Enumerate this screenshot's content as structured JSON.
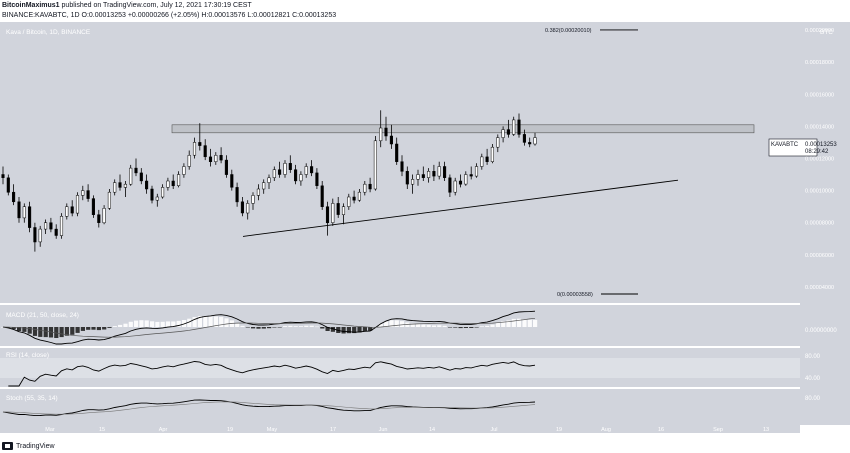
{
  "header": {
    "author": "BitcoinMaximus1",
    "published_text": "published on TradingView.com, July 12, 2021 17:30:19 CEST",
    "symbol": "BINANCE:KAVABTC, 1D",
    "o_label": "O:",
    "o_value": "0.00013253",
    "change": "+0.00000266 (+2.05%)",
    "h_label": "H:",
    "h_value": "0.00013576",
    "l_label": "L:",
    "l_value": "0.00012821",
    "c_label": "C:",
    "c_value": "0.00013253"
  },
  "footer": {
    "brand": "TradingView"
  },
  "chart_data": {
    "type": "candlestick",
    "legend": "Kava / Bitcoin, 1D, BINANCE",
    "currency_label": "BTC",
    "price_axis": {
      "ticks": [
        "0.00020000",
        "0.00018000",
        "0.00016000",
        "0.00014000",
        "0.00012000",
        "0.00010000",
        "0.00008000",
        "0.00006000",
        "0.00004000"
      ],
      "range": [
        3e-05,
        0.000205
      ]
    },
    "price_label": {
      "symbol": "KAVABTC",
      "value": "0.00013253",
      "countdown": "08:29:42"
    },
    "x_axis": {
      "labels": [
        "Mar",
        "15",
        "Apr",
        "19",
        "May",
        "17",
        "Jun",
        "14",
        "Jul",
        "19",
        "Aug",
        "16",
        "Sep",
        "13"
      ]
    },
    "fib_levels": [
      {
        "label": "0.382(0.00020010)",
        "value": 0.0002001
      },
      {
        "label": "0(0.00003558)",
        "value": 3.558e-05
      }
    ],
    "resistance_zone": [
      0.000136,
      0.000141
    ],
    "ascending_support": {
      "from": [
        "Apr 19",
        7.15e-05
      ],
      "to": [
        "Aug 16",
        0.0001065
      ]
    },
    "ohlc_approx": [
      [
        0.00011,
        0.000115,
        0.000104,
        0.000108
      ],
      [
        0.000108,
        0.00011,
        9.7e-05,
        9.9e-05
      ],
      [
        9.9e-05,
        0.000104,
        9.1e-05,
        9.3e-05
      ],
      [
        9.3e-05,
        9.6e-05,
        8e-05,
        8.3e-05
      ],
      [
        8.3e-05,
        9.2e-05,
        8e-05,
        9e-05
      ],
      [
        9e-05,
        9.3e-05,
        7.4e-05,
        7.7e-05
      ],
      [
        7.7e-05,
        8e-05,
        6.2e-05,
        6.8e-05
      ],
      [
        6.8e-05,
        7.8e-05,
        6.5e-05,
        7.6e-05
      ],
      [
        7.6e-05,
        8.2e-05,
        7.3e-05,
        8e-05
      ],
      [
        8e-05,
        8.3e-05,
        7.4e-05,
        7.6e-05
      ],
      [
        7.6e-05,
        7.9e-05,
        7e-05,
        7.2e-05
      ],
      [
        7.2e-05,
        8.6e-05,
        7e-05,
        8.4e-05
      ],
      [
        8.4e-05,
        9.2e-05,
        8.2e-05,
        9e-05
      ],
      [
        9e-05,
        9.4e-05,
        8.4e-05,
        8.6e-05
      ],
      [
        8.6e-05,
        9.9e-05,
        8.4e-05,
        9.7e-05
      ],
      [
        9.7e-05,
        0.000103,
        9.4e-05,
        0.0001
      ],
      [
        0.0001,
        0.000104,
        9.3e-05,
        9.5e-05
      ],
      [
        9.5e-05,
        9.7e-05,
        8.3e-05,
        8.5e-05
      ],
      [
        8.5e-05,
        8.8e-05,
        7.7e-05,
        8e-05
      ],
      [
        8e-05,
        9.1e-05,
        7.9e-05,
        8.9e-05
      ],
      [
        8.9e-05,
        0.000101,
        8.8e-05,
        9.9e-05
      ],
      [
        9.9e-05,
        0.000107,
        9.7e-05,
        0.000105
      ],
      [
        0.000105,
        0.00011,
        0.0001,
        0.000102
      ],
      [
        0.000102,
        0.000106,
        9.6e-05,
        0.000104
      ],
      [
        0.000104,
        0.000116,
        0.000103,
        0.000114
      ],
      [
        0.000114,
        0.00012,
        0.000109,
        0.000111
      ],
      [
        0.000111,
        0.000114,
        0.000104,
        0.000106
      ],
      [
        0.000106,
        0.00011,
        9.8e-05,
        0.000101
      ],
      [
        0.000101,
        0.000103,
        9.2e-05,
        9.4e-05
      ],
      [
        9.4e-05,
        9.8e-05,
        9e-05,
        9.6e-05
      ],
      [
        9.6e-05,
        0.000104,
        9.5e-05,
        0.000102
      ],
      [
        0.000102,
        0.000108,
        0.0001,
        0.000106
      ],
      [
        0.000106,
        0.00011,
        0.000101,
        0.000103
      ],
      [
        0.000103,
        0.000112,
        0.000102,
        0.00011
      ],
      [
        0.00011,
        0.000117,
        0.000108,
        0.000115
      ],
      [
        0.000115,
        0.000125,
        0.000113,
        0.000122
      ],
      [
        0.000122,
        0.000133,
        0.00012,
        0.00013
      ],
      [
        0.00013,
        0.000142,
        0.000125,
        0.000128
      ],
      [
        0.000128,
        0.000132,
        0.000119,
        0.000121
      ],
      [
        0.000121,
        0.000126,
        0.000115,
        0.000118
      ],
      [
        0.000118,
        0.000124,
        0.000116,
        0.000122
      ],
      [
        0.000122,
        0.000127,
        0.000117,
        0.000119
      ],
      [
        0.000119,
        0.000122,
        0.000108,
        0.00011
      ],
      [
        0.00011,
        0.000113,
        0.0001,
        0.000102
      ],
      [
        0.000102,
        0.000105,
        9e-05,
        9.3e-05
      ],
      [
        9.3e-05,
        9.6e-05,
        8.4e-05,
        8.6e-05
      ],
      [
        8.6e-05,
        9.4e-05,
        8.2e-05,
        9.2e-05
      ],
      [
        9.2e-05,
        9.9e-05,
        8.8e-05,
        9.7e-05
      ],
      [
        9.7e-05,
        0.000104,
        9.4e-05,
        0.000101
      ],
      [
        0.000101,
        0.000107,
        9.8e-05,
        0.000105
      ],
      [
        0.000105,
        0.00011,
        0.000101,
        0.000108
      ],
      [
        0.000108,
        0.000115,
        0.000106,
        0.000113
      ],
      [
        0.000113,
        0.000118,
        0.000108,
        0.00011
      ],
      [
        0.00011,
        0.000119,
        0.000108,
        0.000117
      ],
      [
        0.000117,
        0.000122,
        0.000111,
        0.000113
      ],
      [
        0.000113,
        0.000116,
        0.000104,
        0.000106
      ],
      [
        0.000106,
        0.000112,
        0.000103,
        0.00011
      ],
      [
        0.00011,
        0.000117,
        0.000108,
        0.000115
      ],
      [
        0.000115,
        0.000119,
        0.000109,
        0.000111
      ],
      [
        0.000111,
        0.000114,
        0.000101,
        0.000103
      ],
      [
        0.000103,
        0.000106,
        8.8e-05,
        9e-05
      ],
      [
        9e-05,
        9.3e-05,
        7.2e-05,
        8e-05
      ],
      [
        8e-05,
        9.5e-05,
        7.8e-05,
        9.2e-05
      ],
      [
        9.2e-05,
        9.6e-05,
        8.3e-05,
        8.5e-05
      ],
      [
        8.5e-05,
        9.2e-05,
        7.9e-05,
        9e-05
      ],
      [
        9e-05,
        9.8e-05,
        8.8e-05,
        9.6e-05
      ],
      [
        9.6e-05,
        0.0001,
        9.2e-05,
        9.4e-05
      ],
      [
        9.4e-05,
        0.000101,
        9.3e-05,
        9.9e-05
      ],
      [
        9.9e-05,
        0.000106,
        9.7e-05,
        0.000104
      ],
      [
        0.000104,
        0.000108,
        9.9e-05,
        0.000101
      ],
      [
        0.000101,
        0.000134,
        0.0001,
        0.000131
      ],
      [
        0.000131,
        0.00015,
        0.000127,
        0.000139
      ],
      [
        0.000139,
        0.000146,
        0.000131,
        0.000134
      ],
      [
        0.000134,
        0.000141,
        0.000126,
        0.000129
      ],
      [
        0.000129,
        0.000133,
        0.000116,
        0.000118
      ],
      [
        0.000118,
        0.000122,
        0.000109,
        0.000112
      ],
      [
        0.000112,
        0.000115,
        0.000101,
        0.000104
      ],
      [
        0.000104,
        0.00011,
        9.8e-05,
        0.000107
      ],
      [
        0.000107,
        0.000113,
        0.000103,
        0.00011
      ],
      [
        0.00011,
        0.000115,
        0.000106,
        0.000108
      ],
      [
        0.000108,
        0.000114,
        0.000105,
        0.000112
      ],
      [
        0.000112,
        0.000116,
        0.000106,
        0.000109
      ],
      [
        0.000109,
        0.000118,
        0.000107,
        0.000115
      ],
      [
        0.000115,
        0.000118,
        0.000106,
        0.000108
      ],
      [
        0.000108,
        0.00011,
        9.6e-05,
        9.9e-05
      ],
      [
        9.9e-05,
        0.000108,
        9.7e-05,
        0.000106
      ],
      [
        0.000106,
        0.00011,
        0.000102,
        0.000104
      ],
      [
        0.000104,
        0.000112,
        0.000103,
        0.00011
      ],
      [
        0.00011,
        0.000115,
        0.000107,
        0.000109
      ],
      [
        0.000109,
        0.000117,
        0.000108,
        0.000115
      ],
      [
        0.000115,
        0.000123,
        0.000113,
        0.000121
      ],
      [
        0.000121,
        0.000126,
        0.000116,
        0.000118
      ],
      [
        0.000118,
        0.000129,
        0.000117,
        0.000127
      ],
      [
        0.000127,
        0.000135,
        0.000124,
        0.000133
      ],
      [
        0.000133,
        0.00014,
        0.00013,
        0.000138
      ],
      [
        0.000138,
        0.000144,
        0.000133,
        0.000135
      ],
      [
        0.000135,
        0.000146,
        0.000134,
        0.000144
      ],
      [
        0.000144,
        0.000148,
        0.000133,
        0.000135
      ],
      [
        0.000135,
        0.000138,
        0.000128,
        0.00013
      ],
      [
        0.00013,
        0.000133,
        0.000127,
        0.000129
      ],
      [
        0.000129,
        0.000136,
        0.000128,
        0.000133
      ]
    ],
    "indicators": [
      {
        "name": "MACD (21, 50, close, 24)",
        "axis_label": "0.00000000"
      },
      {
        "name": "RSI (14, close)",
        "axis_labels": [
          "80.00",
          "40.00"
        ]
      },
      {
        "name": "Stoch (55, 35, 14)",
        "axis_labels": [
          "80.00"
        ]
      }
    ],
    "colors": {
      "pane_bg": "#d1d4dc",
      "up": "#ffffff",
      "down": "#000000",
      "zone": "#bfc2c8"
    }
  }
}
